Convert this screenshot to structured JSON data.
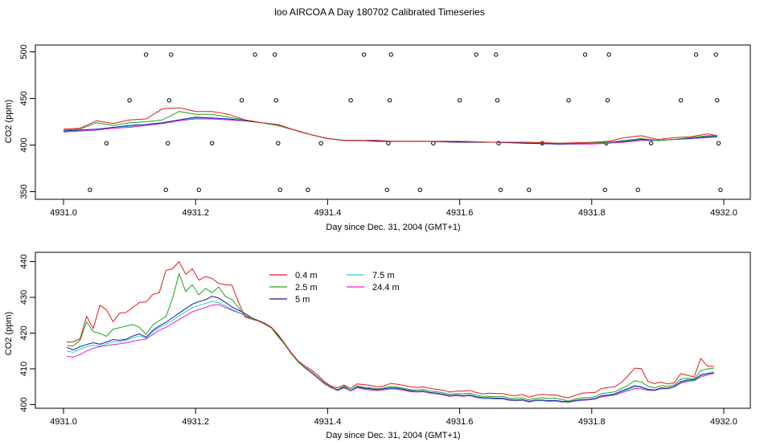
{
  "title": "loo AIRCOA A  Day 180702  Calibrated Timeseries",
  "colors": {
    "0.4 m": "#e31a1c",
    "2.5 m": "#1fa31f",
    "5 m": "#1a1aa6",
    "7.5 m": "#22d3d3",
    "24.4 m": "#e01ad6"
  },
  "chart_data": [
    {
      "type": "line",
      "xlabel": "Day since Dec. 31, 2004 (GMT+1)",
      "ylabel": "CO2 (ppm)",
      "xlim": [
        4931.0,
        4932.0
      ],
      "ylim": [
        350,
        500
      ],
      "xticks": [
        "4931.0",
        "4931.2",
        "4931.4",
        "4931.6",
        "4931.8",
        "4932.0"
      ],
      "yticks": [
        "350",
        "400",
        "450",
        "500"
      ],
      "grid": false,
      "x": [
        4931.0,
        4931.025,
        4931.05,
        4931.075,
        4931.1,
        4931.125,
        4931.15,
        4931.175,
        4931.2,
        4931.225,
        4931.25,
        4931.275,
        4931.3,
        4931.325,
        4931.35,
        4931.375,
        4931.4,
        4931.425,
        4931.45,
        4931.475,
        4931.5,
        4931.55,
        4931.6,
        4931.65,
        4931.7,
        4931.75,
        4931.8,
        4931.825,
        4931.85,
        4931.875,
        4931.9,
        4931.925,
        4931.95,
        4931.975,
        4931.99
      ],
      "series": [
        {
          "name": "0.4 m",
          "values": [
            417,
            418,
            426,
            423,
            427,
            428,
            439,
            440,
            436,
            436,
            433,
            427,
            424,
            422,
            416,
            411,
            407,
            405,
            405,
            405,
            404,
            404,
            404,
            403,
            403,
            402,
            403,
            404,
            408,
            410,
            406,
            408,
            409,
            412,
            410
          ]
        },
        {
          "name": "2.5 m",
          "values": [
            416,
            417,
            424,
            421,
            424,
            425,
            427,
            436,
            433,
            433,
            430,
            427,
            424,
            421,
            416,
            411,
            407,
            405,
            405,
            405,
            404,
            404,
            404,
            403,
            403,
            402,
            402,
            403,
            405,
            407,
            405,
            406,
            408,
            410,
            410
          ]
        },
        {
          "name": "5 m",
          "values": [
            415,
            416,
            417,
            419,
            421,
            422,
            424,
            427,
            430,
            429,
            428,
            426,
            424,
            421,
            416,
            411,
            407,
            405,
            405,
            404,
            404,
            404,
            403,
            403,
            402,
            401,
            402,
            403,
            404,
            406,
            405,
            406,
            407,
            409,
            409
          ]
        },
        {
          "name": "7.5 m",
          "values": [
            415,
            416,
            417,
            419,
            420,
            422,
            424,
            427,
            429,
            429,
            428,
            426,
            424,
            421,
            416,
            411,
            407,
            405,
            405,
            404,
            404,
            404,
            403,
            403,
            402,
            401,
            402,
            403,
            404,
            406,
            405,
            406,
            407,
            409,
            409
          ]
        },
        {
          "name": "24.4 m",
          "values": [
            414,
            415,
            416,
            418,
            419,
            421,
            423,
            426,
            428,
            428,
            427,
            426,
            424,
            421,
            416,
            411,
            407,
            405,
            405,
            404,
            404,
            404,
            403,
            403,
            402,
            401,
            401,
            402,
            403,
            405,
            405,
            406,
            407,
            408,
            409
          ]
        }
      ],
      "scatter_points": [
        [
          4931.04,
          352
        ],
        [
          4931.065,
          402
        ],
        [
          4931.1,
          448
        ],
        [
          4931.125,
          497
        ],
        [
          4931.155,
          352
        ],
        [
          4931.158,
          402
        ],
        [
          4931.16,
          448
        ],
        [
          4931.163,
          497
        ],
        [
          4931.205,
          352
        ],
        [
          4931.225,
          402
        ],
        [
          4931.27,
          448
        ],
        [
          4931.29,
          497
        ],
        [
          4931.32,
          497
        ],
        [
          4931.322,
          448
        ],
        [
          4931.325,
          402
        ],
        [
          4931.328,
          352
        ],
        [
          4931.37,
          352
        ],
        [
          4931.39,
          402
        ],
        [
          4931.435,
          448
        ],
        [
          4931.455,
          497
        ],
        [
          4931.49,
          352
        ],
        [
          4931.492,
          402
        ],
        [
          4931.494,
          448
        ],
        [
          4931.496,
          497
        ],
        [
          4931.54,
          352
        ],
        [
          4931.56,
          402
        ],
        [
          4931.6,
          448
        ],
        [
          4931.625,
          497
        ],
        [
          4931.655,
          497
        ],
        [
          4931.657,
          448
        ],
        [
          4931.659,
          402
        ],
        [
          4931.662,
          352
        ],
        [
          4931.705,
          352
        ],
        [
          4931.725,
          402
        ],
        [
          4931.765,
          448
        ],
        [
          4931.79,
          497
        ],
        [
          4931.82,
          352
        ],
        [
          4931.822,
          402
        ],
        [
          4931.824,
          448
        ],
        [
          4931.826,
          497
        ],
        [
          4931.87,
          352
        ],
        [
          4931.89,
          402
        ],
        [
          4931.935,
          448
        ],
        [
          4931.958,
          497
        ],
        [
          4931.988,
          497
        ],
        [
          4931.99,
          448
        ],
        [
          4931.992,
          402
        ],
        [
          4931.995,
          352
        ]
      ]
    },
    {
      "type": "line",
      "xlabel": "Day since Dec. 31, 2004 (GMT+1)",
      "ylabel": "CO2 (ppm)",
      "xlim": [
        4931.0,
        4932.0
      ],
      "ylim": [
        400,
        440
      ],
      "xticks": [
        "4931.0",
        "4931.2",
        "4931.4",
        "4931.6",
        "4931.8",
        "4932.0"
      ],
      "yticks": [
        "400",
        "410",
        "420",
        "430",
        "440"
      ],
      "grid": false,
      "legend": "top-left",
      "x": [
        4931.005,
        4931.015,
        4931.025,
        4931.035,
        4931.045,
        4931.055,
        4931.065,
        4931.075,
        4931.085,
        4931.095,
        4931.105,
        4931.115,
        4931.125,
        4931.135,
        4931.145,
        4931.155,
        4931.165,
        4931.175,
        4931.185,
        4931.195,
        4931.205,
        4931.215,
        4931.225,
        4931.235,
        4931.245,
        4931.255,
        4931.265,
        4931.275,
        4931.285,
        4931.295,
        4931.305,
        4931.315,
        4931.325,
        4931.335,
        4931.345,
        4931.355,
        4931.365,
        4931.375,
        4931.385,
        4931.395,
        4931.405,
        4931.415,
        4931.425,
        4931.435,
        4931.445,
        4931.455,
        4931.465,
        4931.475,
        4931.485,
        4931.495,
        4931.505,
        4931.515,
        4931.525,
        4931.535,
        4931.545,
        4931.555,
        4931.565,
        4931.575,
        4931.585,
        4931.595,
        4931.605,
        4931.615,
        4931.625,
        4931.635,
        4931.645,
        4931.655,
        4931.665,
        4931.675,
        4931.685,
        4931.695,
        4931.705,
        4931.715,
        4931.725,
        4931.735,
        4931.745,
        4931.755,
        4931.765,
        4931.775,
        4931.785,
        4931.795,
        4931.805,
        4931.815,
        4931.825,
        4931.835,
        4931.845,
        4931.855,
        4931.865,
        4931.875,
        4931.885,
        4931.895,
        4931.905,
        4931.915,
        4931.925,
        4931.935,
        4931.945,
        4931.955,
        4931.965,
        4931.975,
        4931.985
      ],
      "series": [
        {
          "name": "0.4 m",
          "values": [
            417.5,
            417.6,
            418.4,
            424.7,
            421.3,
            427.8,
            426.5,
            423.2,
            425.6,
            425.8,
            427.2,
            428.6,
            428.7,
            430.8,
            431.3,
            437.5,
            438.0,
            440.0,
            436.5,
            438.0,
            434.8,
            435.8,
            435.3,
            433.9,
            433.5,
            433.4,
            428.6,
            424.5,
            423.9,
            423.4,
            422.6,
            421.6,
            419.6,
            417.1,
            414.5,
            412.3,
            410.9,
            409.7,
            408.3,
            406.5,
            405.2,
            404.7,
            405.5,
            404.5,
            405.8,
            405.6,
            405.4,
            405.0,
            405.2,
            405.9,
            405.7,
            405.4,
            405.0,
            404.8,
            405.0,
            404.5,
            404.3,
            404.0,
            403.5,
            403.8,
            403.8,
            404.0,
            403.4,
            403.0,
            403.2,
            403.1,
            403.1,
            402.6,
            402.5,
            402.8,
            402.1,
            402.6,
            402.9,
            402.7,
            402.7,
            402.2,
            401.9,
            402.6,
            403.2,
            403.3,
            403.4,
            404.5,
            404.8,
            405.0,
            406.2,
            408.1,
            410.2,
            410.1,
            406.5,
            405.9,
            406.3,
            405.8,
            406.1,
            408.7,
            408.2,
            407.7,
            412.9,
            410.8,
            410.6
          ]
        },
        {
          "name": "2.5 m",
          "values": [
            416.5,
            416.4,
            418.0,
            423.1,
            420.4,
            419.9,
            419.1,
            421.1,
            421.5,
            422.0,
            422.4,
            421.6,
            419.7,
            422.2,
            423.5,
            424.6,
            429.7,
            436.6,
            431.6,
            433.5,
            430.7,
            432.5,
            431.3,
            432.9,
            430.3,
            429.4,
            427.2,
            424.7,
            424.2,
            423.4,
            422.5,
            421.4,
            419.0,
            416.8,
            414.2,
            412.0,
            410.4,
            409.1,
            407.6,
            406.1,
            405.0,
            404.2,
            405.2,
            404.0,
            405.2,
            404.9,
            404.7,
            404.5,
            404.7,
            405.1,
            404.9,
            404.6,
            404.2,
            404.1,
            404.2,
            403.8,
            403.6,
            403.3,
            402.9,
            403.1,
            403.0,
            403.2,
            402.6,
            402.3,
            402.3,
            402.2,
            402.3,
            401.8,
            401.8,
            401.9,
            401.3,
            401.8,
            401.9,
            401.7,
            401.8,
            401.4,
            401.0,
            401.6,
            401.9,
            402.0,
            402.2,
            403.1,
            403.3,
            403.6,
            404.5,
            405.4,
            406.7,
            406.3,
            405.1,
            404.7,
            405.3,
            405.1,
            405.5,
            407.2,
            407.4,
            407.1,
            409.5,
            410.0,
            410.2
          ]
        },
        {
          "name": "5 m",
          "values": [
            416.0,
            415.3,
            416.2,
            416.8,
            417.3,
            416.9,
            417.5,
            418.2,
            418.0,
            418.3,
            419.2,
            419.8,
            418.8,
            420.7,
            422.0,
            423.0,
            424.3,
            425.6,
            426.8,
            428.1,
            428.8,
            429.3,
            430.3,
            429.8,
            428.6,
            427.3,
            426.4,
            425.5,
            424.3,
            423.5,
            422.7,
            421.6,
            419.4,
            417.0,
            414.4,
            412.1,
            410.5,
            409.2,
            407.7,
            406.1,
            405.0,
            404.1,
            405.0,
            404.0,
            405.0,
            404.6,
            404.4,
            404.2,
            404.4,
            404.7,
            404.6,
            404.3,
            403.9,
            403.7,
            403.8,
            403.4,
            403.2,
            402.9,
            402.5,
            402.7,
            402.5,
            402.7,
            402.2,
            401.9,
            401.9,
            401.8,
            401.8,
            401.4,
            401.3,
            401.4,
            400.9,
            401.3,
            401.3,
            401.1,
            401.2,
            400.9,
            400.8,
            401.2,
            401.4,
            401.5,
            401.7,
            402.5,
            402.7,
            403.0,
            403.8,
            404.5,
            405.3,
            405.0,
            404.3,
            404.1,
            404.7,
            404.6,
            405.1,
            406.4,
            406.9,
            406.9,
            408.3,
            408.7,
            409.0
          ]
        },
        {
          "name": "7.5 m",
          "values": [
            415.0,
            414.6,
            415.5,
            416.2,
            416.6,
            416.4,
            417.0,
            417.6,
            417.6,
            418.0,
            418.7,
            419.2,
            418.6,
            420.3,
            421.6,
            422.4,
            423.6,
            424.8,
            426.0,
            427.1,
            427.8,
            428.3,
            428.9,
            428.5,
            427.6,
            426.7,
            425.8,
            425.1,
            424.2,
            423.5,
            422.7,
            421.6,
            419.4,
            417.0,
            414.4,
            412.1,
            410.4,
            409.1,
            407.6,
            406.0,
            404.9,
            404.0,
            404.9,
            403.9,
            404.9,
            404.5,
            404.3,
            404.1,
            404.3,
            404.6,
            404.5,
            404.2,
            403.8,
            403.6,
            403.7,
            403.3,
            403.1,
            402.8,
            402.4,
            402.6,
            402.4,
            402.6,
            402.1,
            401.8,
            401.8,
            401.7,
            401.7,
            401.3,
            401.2,
            401.3,
            400.8,
            401.2,
            401.2,
            401.0,
            401.1,
            400.8,
            400.7,
            401.1,
            401.3,
            401.4,
            401.6,
            402.4,
            402.6,
            402.9,
            403.6,
            404.3,
            405.0,
            404.8,
            404.2,
            404.0,
            404.6,
            404.5,
            405.0,
            406.2,
            406.7,
            406.8,
            408.1,
            408.6,
            408.9
          ]
        },
        {
          "name": "24.4 m",
          "values": [
            413.5,
            413.3,
            414.0,
            415.0,
            415.8,
            416.2,
            416.5,
            416.8,
            417.0,
            417.3,
            417.7,
            418.1,
            418.3,
            419.6,
            420.8,
            421.6,
            422.7,
            423.8,
            424.9,
            425.9,
            426.6,
            427.2,
            427.8,
            428.0,
            427.2,
            426.4,
            425.7,
            425.0,
            424.2,
            423.5,
            422.7,
            421.6,
            419.4,
            417.0,
            414.4,
            412.1,
            410.3,
            408.9,
            407.4,
            405.8,
            404.7,
            403.9,
            404.7,
            403.8,
            404.7,
            404.3,
            404.1,
            403.9,
            404.1,
            404.4,
            404.3,
            404.0,
            403.6,
            403.5,
            403.6,
            403.2,
            403.0,
            402.7,
            402.3,
            402.5,
            402.3,
            402.5,
            402.0,
            401.7,
            401.7,
            401.6,
            401.6,
            401.2,
            401.1,
            401.2,
            400.7,
            401.1,
            401.1,
            400.9,
            401.0,
            400.7,
            400.6,
            401.0,
            401.2,
            401.3,
            401.5,
            402.2,
            402.4,
            402.7,
            403.3,
            403.9,
            404.5,
            404.4,
            404.0,
            403.9,
            404.4,
            404.4,
            404.9,
            406.0,
            406.5,
            406.7,
            407.7,
            408.3,
            408.7
          ]
        }
      ]
    }
  ]
}
